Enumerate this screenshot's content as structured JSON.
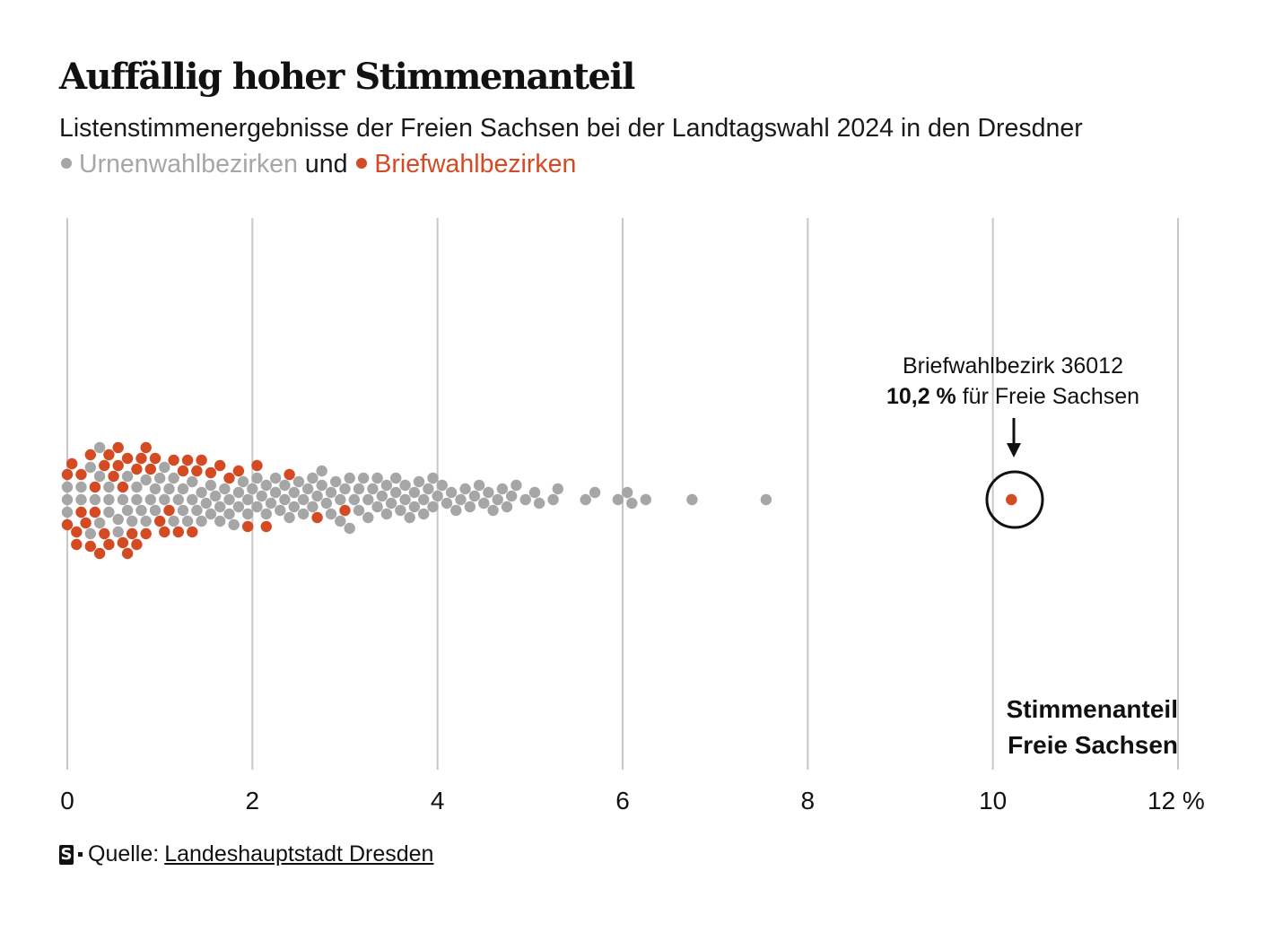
{
  "title": "Auffällig hoher Stimmenanteil",
  "subtitle": {
    "text": "Listenstimmenergebnisse der Freien Sachsen bei der Landtagswahl 2024 in den Dresdner",
    "legend_urne": "Urnenwahlbezirken",
    "legend_und": "und",
    "legend_brief": "Briefwahlbezirken"
  },
  "colors": {
    "urne": "#a6a6a6",
    "brief": "#d44a23",
    "grid": "#c8c8c8",
    "text": "#111111"
  },
  "chart_data": {
    "type": "beeswarm",
    "title": "Auffällig hoher Stimmenanteil",
    "xlabel_line1": "Stimmenanteil",
    "xlabel_line2": "Freie Sachsen",
    "xlim": [
      0,
      12
    ],
    "ticks": [
      0,
      2,
      4,
      6,
      8,
      10,
      12
    ],
    "tick_labels": [
      "0",
      "2",
      "4",
      "6",
      "8",
      "10",
      "12 %"
    ],
    "series": [
      {
        "name": "Urnenwahlbezirken",
        "color": "#a6a6a6",
        "values": [
          0.0,
          0.0,
          0.0,
          0.15,
          0.15,
          0.25,
          0.25,
          0.3,
          0.35,
          0.35,
          0.35,
          0.45,
          0.45,
          0.45,
          0.55,
          0.55,
          0.6,
          0.65,
          0.65,
          0.7,
          0.75,
          0.75,
          0.8,
          0.85,
          0.85,
          0.9,
          0.95,
          0.95,
          1.0,
          1.05,
          1.05,
          1.1,
          1.15,
          1.15,
          1.2,
          1.25,
          1.25,
          1.3,
          1.35,
          1.35,
          1.4,
          1.45,
          1.45,
          1.5,
          1.55,
          1.55,
          1.6,
          1.65,
          1.65,
          1.7,
          1.75,
          1.75,
          1.8,
          1.85,
          1.85,
          1.9,
          1.95,
          1.95,
          2.0,
          2.05,
          2.05,
          2.1,
          2.15,
          2.15,
          2.2,
          2.25,
          2.25,
          2.3,
          2.35,
          2.35,
          2.4,
          2.45,
          2.45,
          2.5,
          2.55,
          2.55,
          2.6,
          2.65,
          2.65,
          2.7,
          2.75,
          2.75,
          2.8,
          2.85,
          2.85,
          2.9,
          2.95,
          2.95,
          3.0,
          3.05,
          3.05,
          3.1,
          3.15,
          3.15,
          3.2,
          3.25,
          3.25,
          3.3,
          3.35,
          3.35,
          3.4,
          3.45,
          3.45,
          3.5,
          3.55,
          3.55,
          3.6,
          3.65,
          3.65,
          3.7,
          3.75,
          3.75,
          3.8,
          3.85,
          3.85,
          3.9,
          3.95,
          3.95,
          4.0,
          4.05,
          4.1,
          4.15,
          4.2,
          4.25,
          4.3,
          4.35,
          4.4,
          4.45,
          4.5,
          4.55,
          4.6,
          4.65,
          4.7,
          4.75,
          4.8,
          4.85,
          4.95,
          5.05,
          5.1,
          5.25,
          5.3,
          5.6,
          5.7,
          5.95,
          6.05,
          6.1,
          6.25,
          6.75,
          7.55
        ]
      },
      {
        "name": "Briefwahlbezirken",
        "color": "#d44a23",
        "values": [
          0.0,
          0.0,
          0.05,
          0.1,
          0.1,
          0.15,
          0.15,
          0.2,
          0.25,
          0.25,
          0.3,
          0.3,
          0.35,
          0.4,
          0.4,
          0.45,
          0.45,
          0.5,
          0.55,
          0.55,
          0.6,
          0.6,
          0.65,
          0.65,
          0.7,
          0.75,
          0.75,
          0.8,
          0.85,
          0.85,
          0.9,
          0.95,
          1.0,
          1.05,
          1.1,
          1.15,
          1.2,
          1.25,
          1.3,
          1.35,
          1.4,
          1.45,
          1.55,
          1.65,
          1.75,
          1.85,
          1.95,
          2.05,
          2.15,
          2.4,
          2.7,
          3.0,
          10.2
        ]
      }
    ],
    "annotation": {
      "label": "Briefwahlbezirk 36012",
      "value_text": "10,2 %",
      "suffix": "für Freie Sachsen",
      "x": 10.2
    }
  },
  "footer": {
    "logo": "S",
    "source_label": "Quelle:",
    "source_link": "Landeshauptstadt Dresden"
  }
}
